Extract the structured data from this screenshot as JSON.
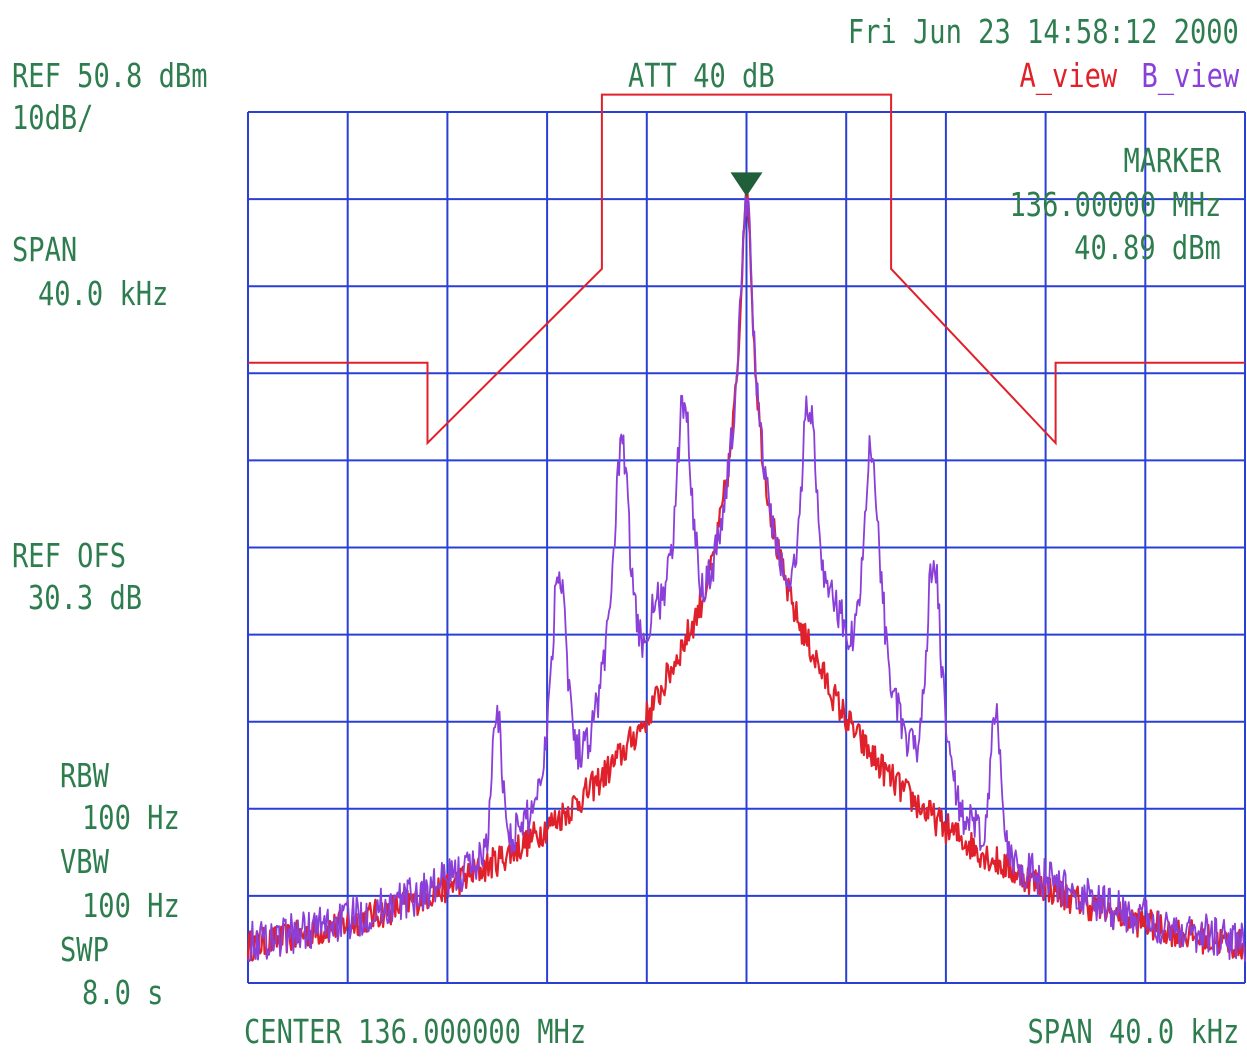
{
  "header": {
    "timestamp": "Fri Jun 23 14:58:12 2000",
    "ref_level": "REF 50.8 dBm",
    "scale": "10dB/",
    "attenuation": "ATT 40 dB",
    "trace_a_label": "A_view",
    "trace_b_label": "B_view"
  },
  "left_panel": {
    "span_title": "SPAN",
    "span_value": "40.0 kHz",
    "ref_ofs_title": "REF OFS",
    "ref_ofs_value": "30.3 dB",
    "rbw_title": "RBW",
    "rbw_value": "100 Hz",
    "vbw_title": "VBW",
    "vbw_value": "100 Hz",
    "swp_title": "SWP",
    "swp_value": "8.0 s"
  },
  "marker": {
    "title": "MARKER",
    "freq": "136.00000 MHz",
    "level": "40.89 dBm"
  },
  "footer": {
    "center": "CENTER 136.000000 MHz",
    "span": "SPAN 40.0 kHz"
  },
  "colors": {
    "grid": "#2a3fd6",
    "text": "#2e7d4f",
    "trace_a": "#e0202a",
    "trace_b": "#8a3fd8",
    "marker": "#1f5f3a",
    "mask": "#e0202a"
  },
  "chart_data": {
    "type": "line",
    "x_unit": "kHz offset from 136.000000 MHz",
    "xlim": [
      -20,
      20
    ],
    "ylim": [
      -49.2,
      50.8
    ],
    "grid_divisions": [
      10,
      10
    ],
    "grid": true,
    "mask": {
      "x": [
        -20,
        -12.8,
        -12.8,
        -5.8,
        -5.8,
        5.8,
        5.8,
        12.4,
        12.4,
        20
      ],
      "y": [
        22.0,
        22.0,
        12.8,
        32.8,
        52.8,
        52.8,
        32.8,
        12.8,
        22.0,
        22.0
      ]
    },
    "series": [
      {
        "name": "A_view",
        "peaks": [
          {
            "f": 0.0,
            "level": 40.89,
            "width": 0.12
          },
          {
            "f": -0.6,
            "level": -1.0,
            "width": 0.4
          },
          {
            "f": 0.6,
            "level": -4.0,
            "width": 0.4
          },
          {
            "f": -1.5,
            "level": -14.0,
            "width": 1.4
          },
          {
            "f": 1.5,
            "level": -15.0,
            "width": 1.4
          }
        ],
        "noise_floor": -48.5,
        "noise_amplitude": 1.8
      },
      {
        "name": "B_view",
        "peaks": [
          {
            "f": 0.0,
            "level": 40.89,
            "width": 0.12
          },
          {
            "f": -2.5,
            "level": 17.0,
            "width": 0.18
          },
          {
            "f": 2.5,
            "level": 17.0,
            "width": 0.18
          },
          {
            "f": -5.0,
            "level": 11.5,
            "width": 0.18
          },
          {
            "f": 5.0,
            "level": 11.5,
            "width": 0.18
          },
          {
            "f": -7.5,
            "level": -2.0,
            "width": 0.18
          },
          {
            "f": 7.5,
            "level": -2.0,
            "width": 0.18
          },
          {
            "f": -10.0,
            "level": -19.5,
            "width": 0.16
          },
          {
            "f": 10.0,
            "level": -19.5,
            "width": 0.16
          },
          {
            "f": -3.0,
            "level": -6.0,
            "width": 0.9
          },
          {
            "f": 3.0,
            "level": -6.0,
            "width": 0.9
          }
        ],
        "noise_floor": -48.0,
        "noise_amplitude": 2.4
      }
    ],
    "marker": {
      "f": 0.0,
      "level": 40.89
    }
  }
}
